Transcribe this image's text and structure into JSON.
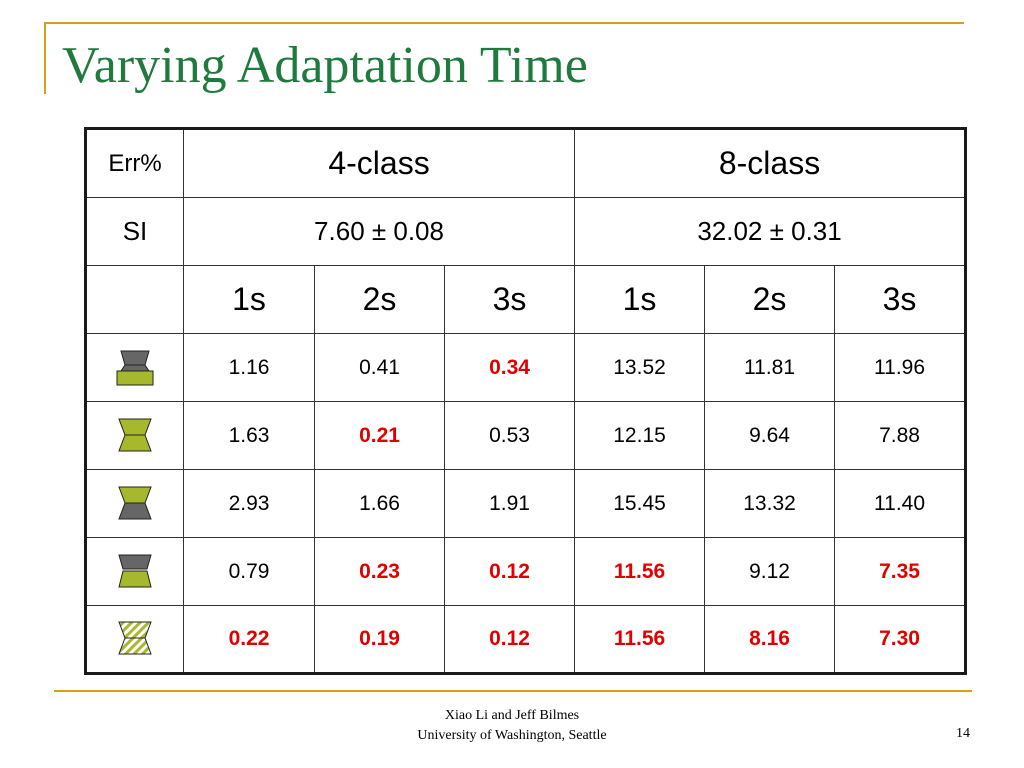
{
  "slide": {
    "title": "Varying Adaptation Time",
    "footer_line1": "Xiao Li and Jeff Bilmes",
    "footer_line2": "University of Washington, Seattle",
    "page_number": "14",
    "colors": {
      "accent_line": "#d4a017",
      "title": "#1f7a3e",
      "highlight": "#e00000",
      "icon_gray": "#666666",
      "icon_green": "#a8b82c"
    }
  },
  "table": {
    "corner_label": "Err%",
    "class_headers": [
      "4-class",
      "8-class"
    ],
    "si_label": "SI",
    "si_values": [
      "7.60 ± 0.08",
      "32.02 ± 0.31"
    ],
    "time_headers": [
      "1s",
      "2s",
      "3s",
      "1s",
      "2s",
      "3s"
    ],
    "rows": [
      {
        "icon": "gray-top-green-bottom-icon",
        "cells": [
          {
            "v": "1.16",
            "hl": false
          },
          {
            "v": "0.41",
            "hl": false
          },
          {
            "v": "0.34",
            "hl": true
          },
          {
            "v": "13.52",
            "hl": false
          },
          {
            "v": "11.81",
            "hl": false
          },
          {
            "v": "11.96",
            "hl": false
          }
        ]
      },
      {
        "icon": "green-hourglass-icon",
        "cells": [
          {
            "v": "1.63",
            "hl": false
          },
          {
            "v": "0.21",
            "hl": true
          },
          {
            "v": "0.53",
            "hl": false
          },
          {
            "v": "12.15",
            "hl": false
          },
          {
            "v": "9.64",
            "hl": false
          },
          {
            "v": "7.88",
            "hl": false
          }
        ]
      },
      {
        "icon": "green-top-gray-bottom-icon",
        "cells": [
          {
            "v": "2.93",
            "hl": false
          },
          {
            "v": "1.66",
            "hl": false
          },
          {
            "v": "1.91",
            "hl": false
          },
          {
            "v": "15.45",
            "hl": false
          },
          {
            "v": "13.32",
            "hl": false
          },
          {
            "v": "11.40",
            "hl": false
          }
        ]
      },
      {
        "icon": "gray-top-green-bottom-small-icon",
        "cells": [
          {
            "v": "0.79",
            "hl": false
          },
          {
            "v": "0.23",
            "hl": true
          },
          {
            "v": "0.12",
            "hl": true
          },
          {
            "v": "11.56",
            "hl": true
          },
          {
            "v": "9.12",
            "hl": false
          },
          {
            "v": "7.35",
            "hl": true
          }
        ]
      },
      {
        "icon": "striped-hourglass-icon",
        "cells": [
          {
            "v": "0.22",
            "hl": true
          },
          {
            "v": "0.19",
            "hl": true
          },
          {
            "v": "0.12",
            "hl": true
          },
          {
            "v": "11.56",
            "hl": true
          },
          {
            "v": "8.16",
            "hl": true
          },
          {
            "v": "7.30",
            "hl": true
          }
        ]
      }
    ]
  }
}
